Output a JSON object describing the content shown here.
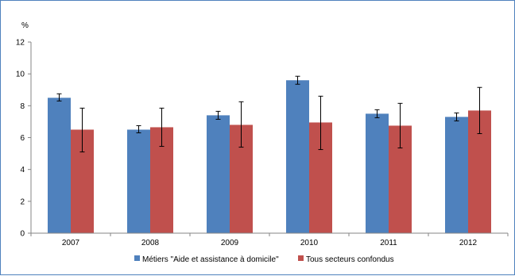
{
  "chart_data": {
    "type": "bar",
    "y_unit": "%",
    "categories": [
      "2007",
      "2008",
      "2009",
      "2010",
      "2011",
      "2012"
    ],
    "series": [
      {
        "name": "Métiers \"Aide et assistance à domicile\"",
        "color": "#4f81bd",
        "values": [
          8.5,
          6.5,
          7.4,
          9.6,
          7.5,
          7.3
        ],
        "error_low": [
          8.3,
          6.3,
          7.15,
          9.35,
          7.25,
          7.05
        ],
        "error_high": [
          8.75,
          6.75,
          7.65,
          9.85,
          7.75,
          7.55
        ]
      },
      {
        "name": "Tous secteurs confondus",
        "color": "#c0504d",
        "values": [
          6.5,
          6.65,
          6.8,
          6.95,
          6.75,
          7.7
        ],
        "error_low": [
          5.1,
          5.45,
          5.4,
          5.25,
          5.35,
          6.25
        ],
        "error_high": [
          7.85,
          7.85,
          8.25,
          8.6,
          8.15,
          9.15
        ]
      }
    ],
    "ylim": [
      0,
      12
    ],
    "yticks": [
      "0",
      "2",
      "4",
      "6",
      "8",
      "10",
      "12"
    ],
    "grid": false,
    "legend_position": "bottom"
  }
}
